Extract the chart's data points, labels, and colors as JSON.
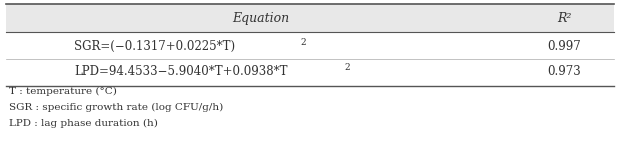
{
  "header": [
    "Equation",
    "R²"
  ],
  "rows": [
    [
      "SGR=(−0.1317+0.0225*T)²",
      "0.997"
    ],
    [
      "LPD=94.4533−5.9040*T+0.0938*T²",
      "0.973"
    ]
  ],
  "footnotes": [
    "T : temperature (°C)",
    "SGR : specific growth rate (log CFU/g/h)",
    "LPD : lag phase duration (h)"
  ],
  "header_bg": "#e8e8e8",
  "body_bg": "#ffffff",
  "text_color": "#333333",
  "font_size": 8.5,
  "header_font_size": 9.0,
  "footnote_font_size": 7.5
}
